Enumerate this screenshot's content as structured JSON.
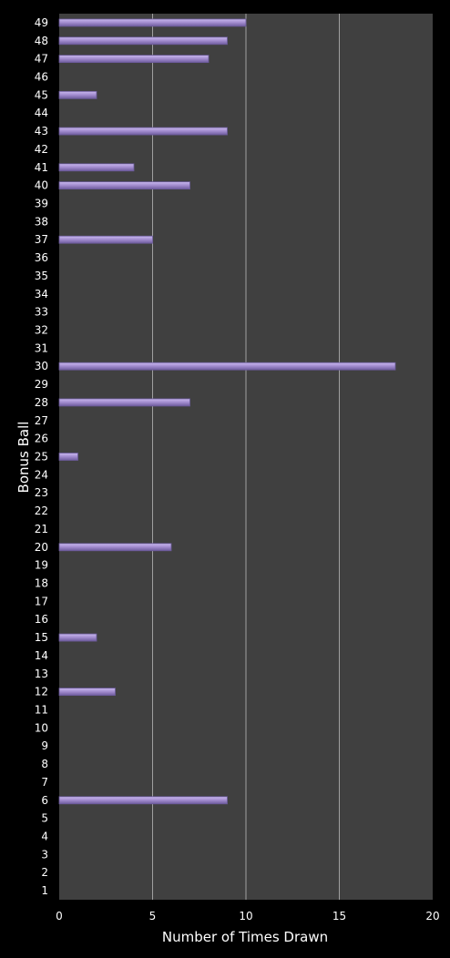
{
  "chart_data": {
    "type": "bar",
    "orientation": "horizontal",
    "xlabel": "Number of Times Drawn",
    "ylabel": "Bonus Ball",
    "xlim": [
      0,
      20
    ],
    "xticks": [
      "0",
      "5",
      "10",
      "15",
      "20"
    ],
    "grid": true,
    "colors": {
      "background": "#000000",
      "plot_area": "#404040",
      "gridline": "#a0a0a0",
      "bar_fill": "#a58fd1",
      "bar_edge": "#6a5a99",
      "text": "#ffffff"
    },
    "categories": [
      "1",
      "2",
      "3",
      "4",
      "5",
      "6",
      "7",
      "8",
      "9",
      "10",
      "11",
      "12",
      "13",
      "14",
      "15",
      "16",
      "17",
      "18",
      "19",
      "20",
      "21",
      "22",
      "23",
      "24",
      "25",
      "26",
      "27",
      "28",
      "29",
      "30",
      "31",
      "32",
      "33",
      "34",
      "35",
      "36",
      "37",
      "38",
      "39",
      "40",
      "41",
      "42",
      "43",
      "44",
      "45",
      "46",
      "47",
      "48",
      "49"
    ],
    "values": [
      0,
      0,
      0,
      0,
      0,
      9,
      0,
      0,
      0,
      0,
      0,
      3,
      0,
      0,
      2,
      0,
      0,
      0,
      0,
      6,
      0,
      0,
      0,
      0,
      1,
      0,
      0,
      7,
      0,
      18,
      0,
      0,
      0,
      0,
      0,
      0,
      5,
      0,
      0,
      7,
      4,
      0,
      9,
      0,
      2,
      0,
      8,
      9,
      10
    ]
  }
}
